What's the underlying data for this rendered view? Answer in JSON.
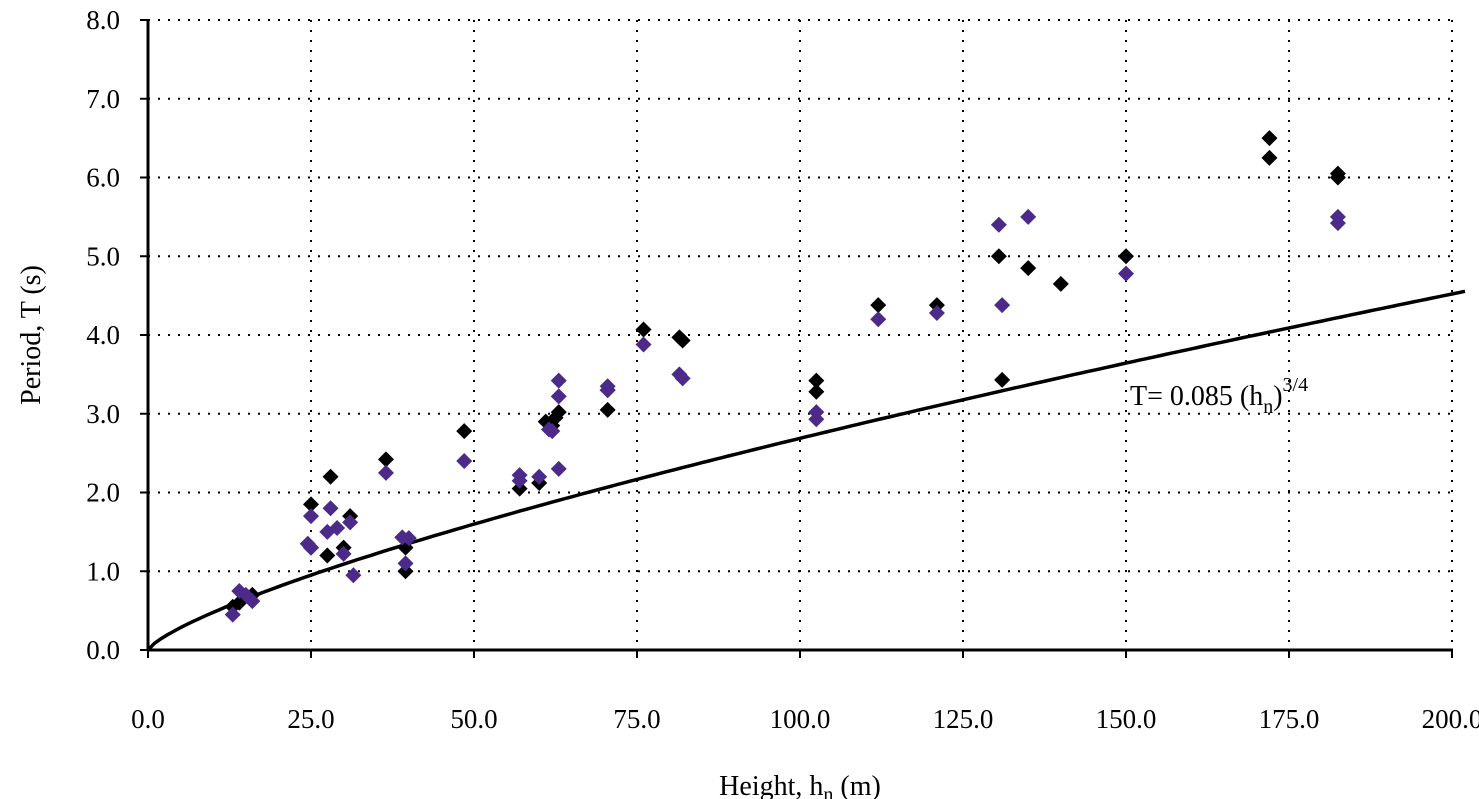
{
  "chart_data": {
    "type": "scatter",
    "title": "",
    "xlabel": "Height, h",
    "xlabel_sub": "n",
    "xlabel_unit": " (m)",
    "ylabel": "Period, T (s)",
    "xlim": [
      0,
      200
    ],
    "ylim": [
      0,
      8
    ],
    "grid": true,
    "x_ticks": [
      "0.0",
      "25.0",
      "50.0",
      "75.0",
      "100.0",
      "125.0",
      "150.0",
      "175.0",
      "200.0"
    ],
    "y_ticks": [
      "0.0",
      "1.0",
      "2.0",
      "3.0",
      "4.0",
      "5.0",
      "6.0",
      "7.0",
      "8.0"
    ],
    "colors": {
      "series1": "#000000",
      "series2": "#4b2a8a",
      "curve": "#000000"
    },
    "series": [
      {
        "name": "series-black",
        "points": [
          [
            13,
            0.55
          ],
          [
            14,
            0.6
          ],
          [
            16,
            0.7
          ],
          [
            25,
            1.85
          ],
          [
            25,
            1.3
          ],
          [
            27.5,
            1.2
          ],
          [
            28,
            2.2
          ],
          [
            30,
            1.3
          ],
          [
            31,
            1.7
          ],
          [
            36.5,
            2.42
          ],
          [
            39.5,
            1.3
          ],
          [
            39.5,
            1.0
          ],
          [
            48.5,
            2.78
          ],
          [
            57,
            2.05
          ],
          [
            60,
            2.12
          ],
          [
            61,
            2.9
          ],
          [
            62,
            2.85
          ],
          [
            62.5,
            2.95
          ],
          [
            63,
            3.02
          ],
          [
            70.5,
            3.05
          ],
          [
            70.5,
            3.3
          ],
          [
            76,
            4.07
          ],
          [
            81.5,
            3.97
          ],
          [
            82,
            3.93
          ],
          [
            102.5,
            3.42
          ],
          [
            102.5,
            3.28
          ],
          [
            112,
            4.38
          ],
          [
            121,
            4.38
          ],
          [
            130.5,
            5.0
          ],
          [
            131,
            3.43
          ],
          [
            135,
            4.85
          ],
          [
            140,
            4.65
          ],
          [
            150,
            5.0
          ],
          [
            172,
            6.5
          ],
          [
            172,
            6.25
          ],
          [
            182.5,
            6.05
          ],
          [
            182.5,
            6.0
          ]
        ]
      },
      {
        "name": "series-purple",
        "points": [
          [
            13,
            0.45
          ],
          [
            14,
            0.75
          ],
          [
            15,
            0.7
          ],
          [
            16,
            0.62
          ],
          [
            25,
            1.7
          ],
          [
            24.5,
            1.35
          ],
          [
            25,
            1.3
          ],
          [
            28,
            1.8
          ],
          [
            27.5,
            1.5
          ],
          [
            29,
            1.55
          ],
          [
            30,
            1.22
          ],
          [
            31,
            1.62
          ],
          [
            31.5,
            0.95
          ],
          [
            36.5,
            2.25
          ],
          [
            39,
            1.43
          ],
          [
            40,
            1.42
          ],
          [
            39.5,
            1.1
          ],
          [
            48.5,
            2.4
          ],
          [
            57,
            2.22
          ],
          [
            57,
            2.15
          ],
          [
            60,
            2.2
          ],
          [
            61.5,
            2.8
          ],
          [
            62,
            2.78
          ],
          [
            63,
            3.42
          ],
          [
            63,
            3.22
          ],
          [
            63,
            2.3
          ],
          [
            70.5,
            3.35
          ],
          [
            70.5,
            3.3
          ],
          [
            76,
            3.88
          ],
          [
            81.5,
            3.5
          ],
          [
            82,
            3.45
          ],
          [
            102.5,
            3.02
          ],
          [
            102.5,
            2.93
          ],
          [
            112,
            4.2
          ],
          [
            121,
            4.28
          ],
          [
            130.5,
            5.4
          ],
          [
            131,
            4.38
          ],
          [
            135,
            5.5
          ],
          [
            150,
            4.78
          ],
          [
            182.5,
            5.5
          ],
          [
            182.5,
            5.42
          ]
        ]
      }
    ],
    "curve": {
      "name": "code-formula",
      "coefficient": 0.085,
      "exponent": 0.75,
      "x_range": [
        0,
        202
      ]
    },
    "annotation": {
      "text": "T= 0.085 (h",
      "sub": "n",
      "close": ")",
      "sup": "3/4"
    }
  }
}
